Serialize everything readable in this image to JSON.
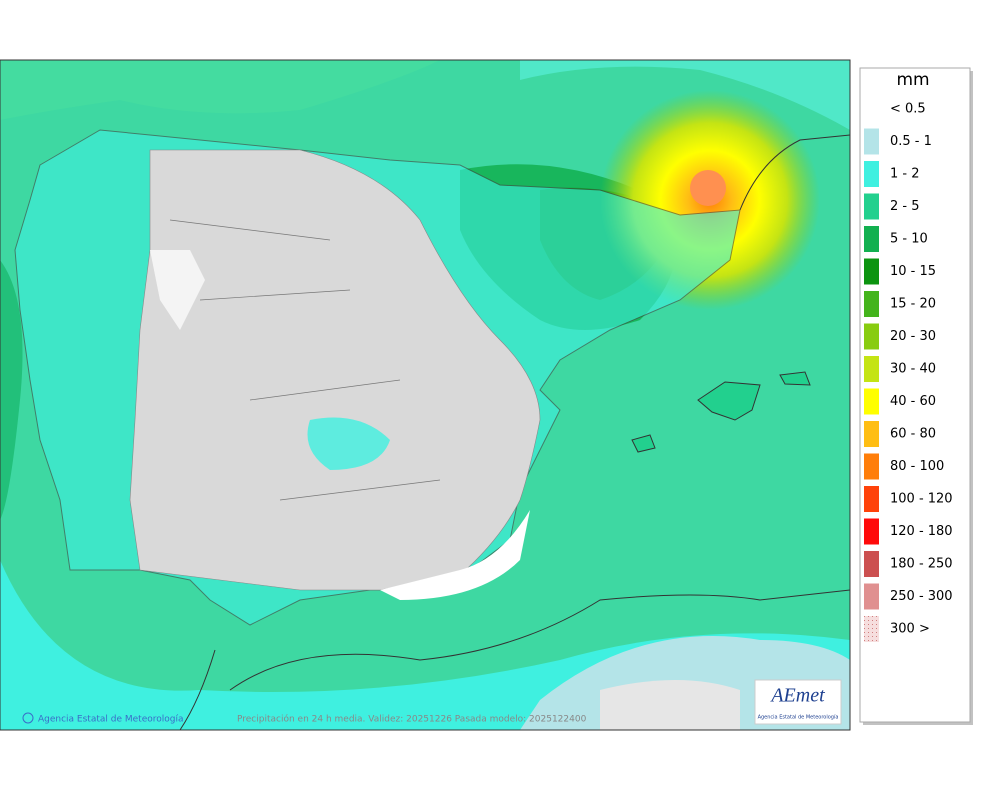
{
  "legend": {
    "title": "mm",
    "items": [
      {
        "label": "< 0.5"
      },
      {
        "label": "0.5 - 1",
        "color": "#b4e4e8"
      },
      {
        "label": "1 - 2",
        "color": "#3ff0e0"
      },
      {
        "label": "2 - 5",
        "color": "#22d08e"
      },
      {
        "label": "5 - 10",
        "color": "#12b050"
      },
      {
        "label": "10 - 15",
        "color": "#0c9410"
      },
      {
        "label": "15 - 20",
        "color": "#44b41c"
      },
      {
        "label": "20 - 30",
        "color": "#88cc10"
      },
      {
        "label": "30 - 40",
        "color": "#c4e414"
      },
      {
        "label": "40 - 60",
        "color": "#ffff00"
      },
      {
        "label": "60 - 80",
        "color": "#ffbe14"
      },
      {
        "label": "80 - 100",
        "color": "#ff7e0a"
      },
      {
        "label": "100 - 120",
        "color": "#ff420a"
      },
      {
        "label": "120 - 180",
        "color": "#ff0a0a"
      },
      {
        "label": "180 - 250",
        "color": "#cc5050"
      },
      {
        "label": "250 - 300",
        "color": "#e09090"
      },
      {
        "label": "300 >",
        "color": "#f2cccc"
      }
    ]
  },
  "footer": {
    "credit": "Agencia Estatal de Meteorología",
    "caption": "Precipitación en 24 h media. Validez: 20251226 Pasada modelo: 2025122400"
  },
  "logo": {
    "name": "AEmet",
    "subtitle": "Agencia Estatal de Meteorología"
  }
}
